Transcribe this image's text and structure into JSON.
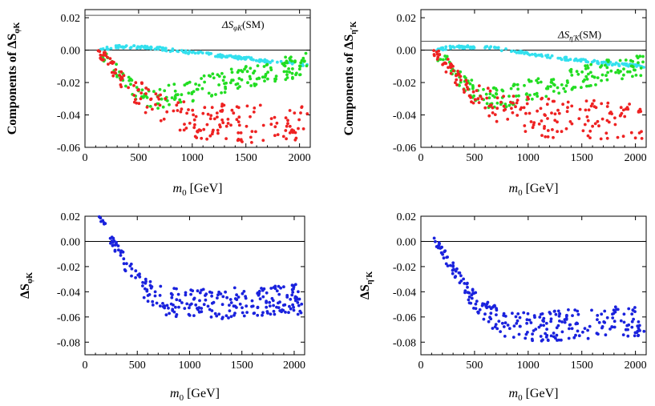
{
  "colors": {
    "red": "#ee2222",
    "green": "#22dd22",
    "cyan": "#33e0ee",
    "blue": "#1a22dd",
    "axis": "#000000",
    "smline": "#555555"
  },
  "chart_data": [
    {
      "id": "top-left",
      "type": "scatter",
      "xlabel_main": "m",
      "xlabel_sub": "0",
      "xlabel_unit": "[GeV]",
      "ylabel_prefix": "Components of ΔS",
      "ylabel_sub": "φK",
      "xlim": [
        0,
        2100
      ],
      "ylim": [
        -0.06,
        0.025
      ],
      "xticks": [
        0,
        500,
        1000,
        1500,
        2000
      ],
      "xtick_labels": [
        "0",
        "500",
        "1000",
        "1500",
        "2000"
      ],
      "yticks": [
        0.02,
        0.0,
        -0.02,
        -0.04,
        -0.06
      ],
      "ytick_labels": [
        "0.02",
        "0.00",
        "-0.02",
        "-0.04",
        "-0.06"
      ],
      "sm_line": {
        "value": 0.0215,
        "label_main": "ΔS",
        "label_sub": "φK",
        "label_tail": "(SM)"
      },
      "series": [
        {
          "name": "cyan",
          "color": "cyan",
          "x": [
            120,
            300,
            500,
            700,
            900,
            1100,
            1300,
            1500,
            1700,
            1900,
            2080
          ],
          "y": [
            0.0,
            0.002,
            0.002,
            0.001,
            -0.001,
            -0.002,
            -0.004,
            -0.005,
            -0.007,
            -0.008,
            -0.009
          ]
        },
        {
          "name": "green",
          "color": "green",
          "x": [
            150,
            300,
            400,
            500,
            600,
            700,
            800,
            1000,
            1200,
            1400,
            1600,
            1800,
            2000,
            2080
          ],
          "y": [
            -0.002,
            -0.012,
            -0.02,
            -0.026,
            -0.029,
            -0.03,
            -0.028,
            -0.025,
            -0.021,
            -0.018,
            -0.015,
            -0.012,
            -0.01,
            -0.008
          ]
        },
        {
          "name": "red",
          "color": "red",
          "x": [
            120,
            200,
            300,
            400,
            500,
            600,
            700,
            800,
            1000,
            1200,
            1400,
            1600,
            1800,
            2000,
            2080
          ],
          "y": [
            0.0,
            -0.006,
            -0.014,
            -0.022,
            -0.027,
            -0.031,
            -0.036,
            -0.04,
            -0.043,
            -0.044,
            -0.045,
            -0.045,
            -0.045,
            -0.046,
            -0.046
          ]
        }
      ]
    },
    {
      "id": "top-right",
      "type": "scatter",
      "xlabel_main": "m",
      "xlabel_sub": "0",
      "xlabel_unit": "[GeV]",
      "ylabel_prefix": "Components of ΔS",
      "ylabel_sub": "η′K",
      "xlim": [
        0,
        2100
      ],
      "ylim": [
        -0.06,
        0.025
      ],
      "xticks": [
        0,
        500,
        1000,
        1500,
        2000
      ],
      "xtick_labels": [
        "0",
        "500",
        "1000",
        "1500",
        "2000"
      ],
      "yticks": [
        0.02,
        0.0,
        -0.02,
        -0.04,
        -0.06
      ],
      "ytick_labels": [
        "0.02",
        "0.00",
        "-0.02",
        "-0.04",
        "-0.06"
      ],
      "sm_line": {
        "value": 0.0055,
        "label_main": "ΔS",
        "label_sub": "η′K",
        "label_tail": "(SM)"
      },
      "series": [
        {
          "name": "cyan",
          "color": "cyan",
          "x": [
            120,
            300,
            500,
            700,
            900,
            1100,
            1300,
            1500,
            1700,
            1900,
            2080
          ],
          "y": [
            0.0,
            0.002,
            0.002,
            0.001,
            -0.001,
            -0.003,
            -0.005,
            -0.006,
            -0.008,
            -0.009,
            -0.01
          ]
        },
        {
          "name": "green",
          "color": "green",
          "x": [
            150,
            300,
            400,
            500,
            600,
            700,
            800,
            1000,
            1200,
            1400,
            1600,
            1800,
            2000,
            2080
          ],
          "y": [
            -0.002,
            -0.012,
            -0.02,
            -0.026,
            -0.029,
            -0.03,
            -0.028,
            -0.025,
            -0.021,
            -0.018,
            -0.015,
            -0.012,
            -0.01,
            -0.008
          ]
        },
        {
          "name": "red",
          "color": "red",
          "x": [
            120,
            200,
            300,
            400,
            500,
            600,
            700,
            800,
            1000,
            1200,
            1400,
            1600,
            1800,
            2000,
            2080
          ],
          "y": [
            0.0,
            -0.006,
            -0.014,
            -0.022,
            -0.027,
            -0.031,
            -0.035,
            -0.038,
            -0.041,
            -0.042,
            -0.043,
            -0.043,
            -0.044,
            -0.044,
            -0.045
          ]
        }
      ]
    },
    {
      "id": "bottom-left",
      "type": "scatter",
      "xlabel_main": "m",
      "xlabel_sub": "0",
      "xlabel_unit": "[GeV]",
      "ylabel_prefix": "ΔS",
      "ylabel_sub": "φK",
      "xlim": [
        0,
        2100
      ],
      "ylim": [
        -0.09,
        0.02
      ],
      "xticks": [
        0,
        500,
        1000,
        1500,
        2000
      ],
      "xtick_labels": [
        "0",
        "500",
        "1000",
        "1500",
        "2000"
      ],
      "yticks": [
        0.02,
        0.0,
        -0.02,
        -0.04,
        -0.06,
        -0.08
      ],
      "ytick_labels": [
        "0.02",
        "0.00",
        "-0.02",
        "-0.04",
        "-0.06",
        "-0.08"
      ],
      "series": [
        {
          "name": "blue",
          "color": "blue",
          "x": [
            120,
            200,
            300,
            400,
            500,
            600,
            700,
            800,
            1000,
            1200,
            1400,
            1600,
            1800,
            2000,
            2080
          ],
          "y": [
            0.02,
            0.01,
            -0.005,
            -0.02,
            -0.032,
            -0.04,
            -0.045,
            -0.048,
            -0.05,
            -0.05,
            -0.049,
            -0.048,
            -0.047,
            -0.046,
            -0.046
          ]
        }
      ]
    },
    {
      "id": "bottom-right",
      "type": "scatter",
      "xlabel_main": "m",
      "xlabel_sub": "0",
      "xlabel_unit": "[GeV]",
      "ylabel_prefix": "ΔS",
      "ylabel_sub": "η′K",
      "xlim": [
        0,
        2100
      ],
      "ylim": [
        -0.09,
        0.02
      ],
      "xticks": [
        0,
        500,
        1000,
        1500,
        2000
      ],
      "xtick_labels": [
        "0",
        "500",
        "1000",
        "1500",
        "2000"
      ],
      "yticks": [
        0.02,
        0.0,
        -0.02,
        -0.04,
        -0.06,
        -0.08
      ],
      "ytick_labels": [
        "0.02",
        "0.00",
        "-0.02",
        "-0.04",
        "-0.06",
        "-0.08"
      ],
      "series": [
        {
          "name": "blue",
          "color": "blue",
          "x": [
            120,
            200,
            300,
            400,
            500,
            600,
            700,
            800,
            1000,
            1200,
            1400,
            1600,
            1800,
            2000,
            2080
          ],
          "y": [
            0.002,
            -0.008,
            -0.022,
            -0.036,
            -0.048,
            -0.056,
            -0.062,
            -0.066,
            -0.068,
            -0.067,
            -0.066,
            -0.065,
            -0.064,
            -0.063,
            -0.063
          ]
        }
      ]
    }
  ]
}
